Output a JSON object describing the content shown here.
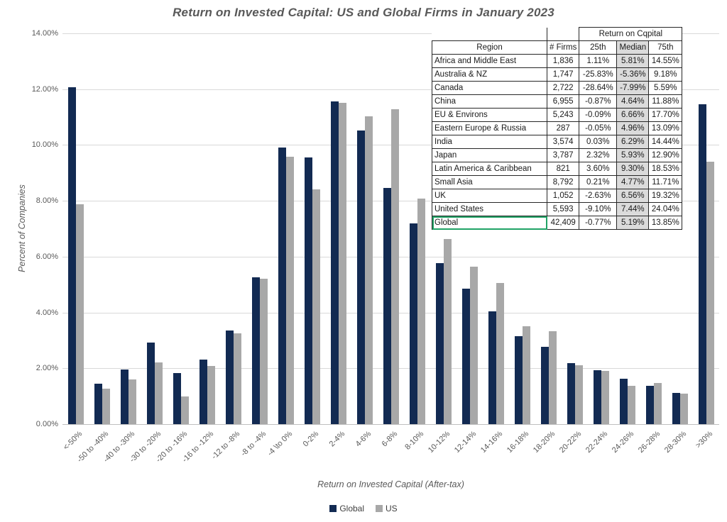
{
  "title": "Return on Invested Capital: US and Global Firms in January 2023",
  "chart_data": {
    "type": "bar",
    "title": "Return on Invested Capital: US and Global Firms in January 2023",
    "xlabel": "Return on Invested Capital (After-tax)",
    "ylabel": "Percent of Companies",
    "ylim": [
      0,
      14
    ],
    "ytick_step": 2,
    "ytick_labels": [
      "0.00%",
      "2.00%",
      "4.00%",
      "6.00%",
      "8.00%",
      "10.00%",
      "12.00%",
      "14.00%"
    ],
    "grid": true,
    "legend_position": "bottom",
    "categories": [
      "<-50%",
      "-50 to -40%",
      "-40 to -30%",
      "-30 to -20%",
      "-20 to -16%",
      "-16 to -12%",
      "-12 to -8%",
      "-8 to -4%",
      "-4 \\to 0%",
      "0-2%",
      "2-4%",
      "4-6%",
      "6-8%",
      "8-10%",
      "10-12%",
      "12-14%",
      "14-16%",
      "16-18%",
      "18-20%",
      "20-22%",
      "22-24%",
      "24-26%",
      "26-28%",
      "28-30%",
      ">30%"
    ],
    "series": [
      {
        "name": "Global",
        "color": "#122A52",
        "values": [
          12.07,
          1.45,
          1.95,
          2.93,
          1.82,
          2.3,
          3.35,
          5.25,
          9.9,
          9.55,
          11.55,
          10.52,
          8.45,
          7.18,
          5.78,
          4.85,
          4.05,
          3.15,
          2.78,
          2.18,
          1.93,
          1.62,
          1.38,
          1.13,
          11.45
        ]
      },
      {
        "name": "US",
        "color": "#A8A8A8",
        "values": [
          7.87,
          1.27,
          1.6,
          2.2,
          1.0,
          2.08,
          3.25,
          5.22,
          9.57,
          8.4,
          11.52,
          11.03,
          11.28,
          8.08,
          6.62,
          5.65,
          5.05,
          3.5,
          3.33,
          2.1,
          1.9,
          1.38,
          1.47,
          1.1,
          9.4
        ]
      }
    ]
  },
  "table": {
    "group_header": "Return on Cqpital",
    "columns": [
      "Region",
      "# Firms",
      "25th",
      "Median",
      "75th"
    ],
    "highlighted_column": "Median",
    "selected_row_label": "Global",
    "rows": [
      [
        "Africa and Middle East",
        "1,836",
        "1.11%",
        "5.81%",
        "14.55%"
      ],
      [
        "Australia & NZ",
        "1,747",
        "-25.83%",
        "-5.36%",
        "9.18%"
      ],
      [
        "Canada",
        "2,722",
        "-28.64%",
        "-7.99%",
        "5.59%"
      ],
      [
        "China",
        "6,955",
        "-0.87%",
        "4.64%",
        "11.88%"
      ],
      [
        "EU & Environs",
        "5,243",
        "-0.09%",
        "6.66%",
        "17.70%"
      ],
      [
        "Eastern Europe & Russia",
        "287",
        "-0.05%",
        "4.96%",
        "13.09%"
      ],
      [
        "India",
        "3,574",
        "0.03%",
        "6.29%",
        "14.44%"
      ],
      [
        "Japan",
        "3,787",
        "2.32%",
        "5.93%",
        "12.90%"
      ],
      [
        "Latin America & Caribbean",
        "821",
        "3.60%",
        "9.30%",
        "18.53%"
      ],
      [
        "Small Asia",
        "8,792",
        "0.21%",
        "4.77%",
        "11.71%"
      ],
      [
        "UK",
        "1,052",
        "-2.63%",
        "6.56%",
        "19.32%"
      ],
      [
        "United States",
        "5,593",
        "-9.10%",
        "7.44%",
        "24.04%"
      ],
      [
        "Global",
        "42,409",
        "-0.77%",
        "5.19%",
        "13.85%"
      ]
    ]
  },
  "colors": {
    "global_bar": "#122A52",
    "us_bar": "#A8A8A8",
    "gridline": "#D9D9D9",
    "axis_text": "#595959",
    "median_shade": "#DBDBDB",
    "selection_green": "#21A366"
  }
}
